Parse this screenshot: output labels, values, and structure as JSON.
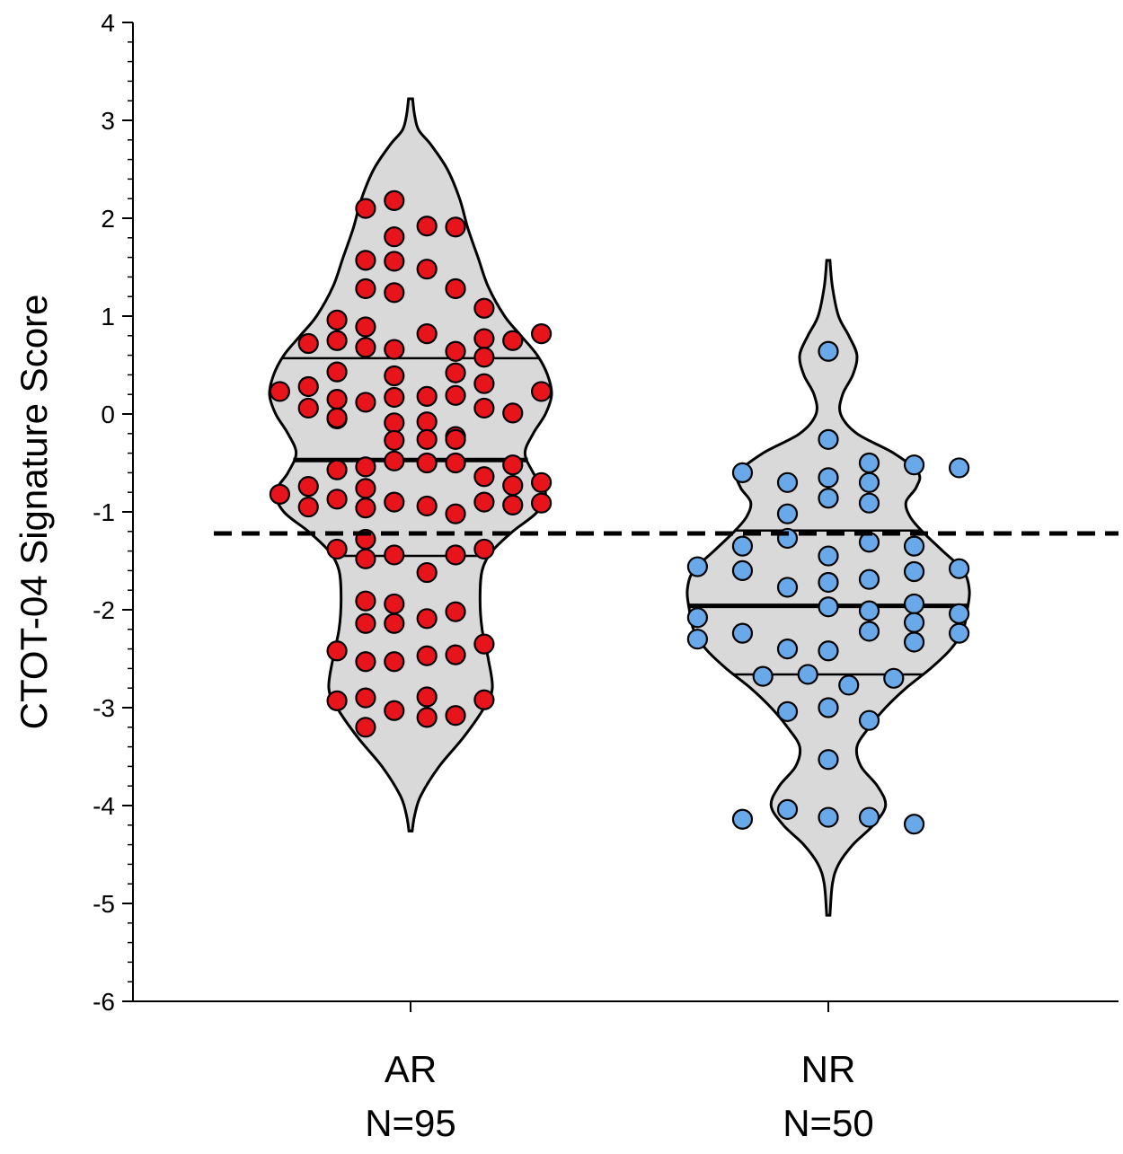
{
  "chart_data": {
    "type": "violin",
    "ylabel": "CTOT-04 Signature Score",
    "ylim": [
      -6,
      4
    ],
    "yticks": [
      4,
      3,
      2,
      1,
      0,
      -1,
      -2,
      -3,
      -4,
      -5,
      -6
    ],
    "ytick_labels": [
      "4",
      "3",
      "2",
      "1",
      "0",
      "-1",
      "-2",
      "-3",
      "-4",
      "-5",
      "-6"
    ],
    "threshold": -1.22,
    "groups": [
      {
        "name": "AR",
        "n_label": "N=95",
        "point_color": "#e8141b",
        "median": -0.47,
        "q1": -1.45,
        "q3": 0.57,
        "points": [
          {
            "x": -0.11,
            "y": 2.1
          },
          {
            "x": -0.04,
            "y": 2.18
          },
          {
            "x": 0.04,
            "y": 1.92
          },
          {
            "x": 0.11,
            "y": 1.91
          },
          {
            "x": -0.04,
            "y": 1.81
          },
          {
            "x": -0.11,
            "y": 1.57
          },
          {
            "x": -0.04,
            "y": 1.56
          },
          {
            "x": 0.04,
            "y": 1.48
          },
          {
            "x": -0.11,
            "y": 1.28
          },
          {
            "x": -0.04,
            "y": 1.24
          },
          {
            "x": 0.11,
            "y": 1.28
          },
          {
            "x": 0.18,
            "y": 1.08
          },
          {
            "x": -0.18,
            "y": 0.96
          },
          {
            "x": -0.11,
            "y": 0.89
          },
          {
            "x": 0.04,
            "y": 0.82
          },
          {
            "x": 0.18,
            "y": 0.77
          },
          {
            "x": 0.25,
            "y": 0.75
          },
          {
            "x": 0.32,
            "y": 0.82
          },
          {
            "x": -0.25,
            "y": 0.72
          },
          {
            "x": -0.18,
            "y": 0.75
          },
          {
            "x": -0.11,
            "y": 0.68
          },
          {
            "x": -0.04,
            "y": 0.66
          },
          {
            "x": 0.11,
            "y": 0.64
          },
          {
            "x": 0.18,
            "y": 0.58
          },
          {
            "x": -0.18,
            "y": 0.43
          },
          {
            "x": -0.04,
            "y": 0.39
          },
          {
            "x": 0.11,
            "y": 0.42
          },
          {
            "x": -0.32,
            "y": 0.23
          },
          {
            "x": -0.25,
            "y": 0.28
          },
          {
            "x": 0.18,
            "y": 0.31
          },
          {
            "x": 0.32,
            "y": 0.23
          },
          {
            "x": -0.18,
            "y": 0.15
          },
          {
            "x": -0.11,
            "y": 0.12
          },
          {
            "x": -0.04,
            "y": 0.17
          },
          {
            "x": 0.04,
            "y": 0.18
          },
          {
            "x": 0.11,
            "y": 0.19
          },
          {
            "x": -0.25,
            "y": 0.06
          },
          {
            "x": 0.18,
            "y": 0.06
          },
          {
            "x": 0.25,
            "y": 0.01
          },
          {
            "x": -0.18,
            "y": -0.05
          },
          {
            "x": -0.04,
            "y": -0.09
          },
          {
            "x": 0.04,
            "y": -0.08
          },
          {
            "x": -0.04,
            "y": -0.27
          },
          {
            "x": 0.04,
            "y": -0.26
          },
          {
            "x": 0.11,
            "y": -0.23
          },
          {
            "x": -0.04,
            "y": -0.48
          },
          {
            "x": 0.04,
            "y": -0.5
          },
          {
            "x": 0.11,
            "y": -0.5
          },
          {
            "x": -0.11,
            "y": -0.54
          },
          {
            "x": -0.18,
            "y": -0.57
          },
          {
            "x": 0.18,
            "y": -0.64
          },
          {
            "x": 0.25,
            "y": -0.52
          },
          {
            "x": 0.25,
            "y": -0.73
          },
          {
            "x": 0.32,
            "y": -0.7
          },
          {
            "x": -0.11,
            "y": -0.76
          },
          {
            "x": -0.32,
            "y": -0.82
          },
          {
            "x": -0.18,
            "y": -0.87
          },
          {
            "x": -0.04,
            "y": -0.9
          },
          {
            "x": 0.04,
            "y": -0.94
          },
          {
            "x": 0.18,
            "y": -0.9
          },
          {
            "x": 0.25,
            "y": -0.93
          },
          {
            "x": 0.32,
            "y": -0.91
          },
          {
            "x": -0.25,
            "y": -0.95
          },
          {
            "x": -0.11,
            "y": -0.96
          },
          {
            "x": 0.11,
            "y": -1.02
          },
          {
            "x": -0.11,
            "y": -1.28
          },
          {
            "x": -0.18,
            "y": -1.38
          },
          {
            "x": -0.04,
            "y": -1.44
          },
          {
            "x": 0.11,
            "y": -1.44
          },
          {
            "x": 0.18,
            "y": -1.38
          },
          {
            "x": -0.11,
            "y": -1.48
          },
          {
            "x": 0.04,
            "y": -1.62
          },
          {
            "x": -0.11,
            "y": -1.91
          },
          {
            "x": -0.04,
            "y": -1.94
          },
          {
            "x": -0.11,
            "y": -2.14
          },
          {
            "x": -0.04,
            "y": -2.14
          },
          {
            "x": 0.04,
            "y": -2.09
          },
          {
            "x": 0.11,
            "y": -2.02
          },
          {
            "x": -0.18,
            "y": -2.42
          },
          {
            "x": -0.11,
            "y": -2.53
          },
          {
            "x": -0.04,
            "y": -2.53
          },
          {
            "x": 0.04,
            "y": -2.47
          },
          {
            "x": 0.11,
            "y": -2.46
          },
          {
            "x": 0.18,
            "y": -2.35
          },
          {
            "x": -0.18,
            "y": -2.93
          },
          {
            "x": -0.11,
            "y": -2.9
          },
          {
            "x": 0.04,
            "y": -2.89
          },
          {
            "x": 0.18,
            "y": -2.92
          },
          {
            "x": -0.04,
            "y": -3.03
          },
          {
            "x": 0.04,
            "y": -3.1
          },
          {
            "x": 0.11,
            "y": -3.08
          },
          {
            "x": -0.11,
            "y": -3.2
          },
          {
            "x": -0.18,
            "y": -0.04
          },
          {
            "x": 0.11,
            "y": -0.26
          },
          {
            "x": -0.25,
            "y": -0.74
          }
        ],
        "violin_profile": [
          [
            3.22,
            0.005
          ],
          [
            3.05,
            0.01
          ],
          [
            2.9,
            0.02
          ],
          [
            2.75,
            0.05
          ],
          [
            2.5,
            0.09
          ],
          [
            2.2,
            0.12
          ],
          [
            1.9,
            0.14
          ],
          [
            1.6,
            0.165
          ],
          [
            1.3,
            0.19
          ],
          [
            1.0,
            0.23
          ],
          [
            0.8,
            0.27
          ],
          [
            0.6,
            0.31
          ],
          [
            0.4,
            0.335
          ],
          [
            0.2,
            0.345
          ],
          [
            0.0,
            0.33
          ],
          [
            -0.2,
            0.3
          ],
          [
            -0.4,
            0.28
          ],
          [
            -0.6,
            0.3
          ],
          [
            -0.8,
            0.33
          ],
          [
            -1.0,
            0.31
          ],
          [
            -1.2,
            0.25
          ],
          [
            -1.4,
            0.2
          ],
          [
            -1.6,
            0.175
          ],
          [
            -1.9,
            0.17
          ],
          [
            -2.2,
            0.175
          ],
          [
            -2.5,
            0.19
          ],
          [
            -2.8,
            0.2
          ],
          [
            -3.0,
            0.18
          ],
          [
            -3.3,
            0.13
          ],
          [
            -3.6,
            0.07
          ],
          [
            -3.9,
            0.025
          ],
          [
            -4.1,
            0.01
          ],
          [
            -4.26,
            0.004
          ]
        ]
      },
      {
        "name": "NR",
        "n_label": "N=50",
        "point_color": "#6aa9e9",
        "median": -1.96,
        "q1": -2.66,
        "q3": -1.19,
        "points": [
          {
            "x": 0.0,
            "y": 0.64
          },
          {
            "x": 0.0,
            "y": -0.26
          },
          {
            "x": -0.21,
            "y": -0.6
          },
          {
            "x": -0.1,
            "y": -0.7
          },
          {
            "x": 0.0,
            "y": -0.65
          },
          {
            "x": 0.1,
            "y": -0.5
          },
          {
            "x": 0.21,
            "y": -0.52
          },
          {
            "x": 0.32,
            "y": -0.55
          },
          {
            "x": 0.1,
            "y": -0.7
          },
          {
            "x": 0.0,
            "y": -0.86
          },
          {
            "x": 0.1,
            "y": -0.91
          },
          {
            "x": -0.1,
            "y": -1.02
          },
          {
            "x": -0.1,
            "y": -1.27
          },
          {
            "x": -0.21,
            "y": -1.35
          },
          {
            "x": 0.1,
            "y": -1.31
          },
          {
            "x": 0.21,
            "y": -1.35
          },
          {
            "x": 0.0,
            "y": -1.45
          },
          {
            "x": -0.32,
            "y": -1.56
          },
          {
            "x": -0.21,
            "y": -1.6
          },
          {
            "x": 0.32,
            "y": -1.58
          },
          {
            "x": 0.0,
            "y": -1.72
          },
          {
            "x": 0.1,
            "y": -1.69
          },
          {
            "x": 0.21,
            "y": -1.61
          },
          {
            "x": -0.1,
            "y": -1.77
          },
          {
            "x": 0.0,
            "y": -1.97
          },
          {
            "x": 0.1,
            "y": -2.01
          },
          {
            "x": 0.21,
            "y": -1.94
          },
          {
            "x": -0.32,
            "y": -2.08
          },
          {
            "x": 0.21,
            "y": -2.13
          },
          {
            "x": 0.32,
            "y": -2.04
          },
          {
            "x": -0.21,
            "y": -2.24
          },
          {
            "x": 0.1,
            "y": -2.22
          },
          {
            "x": 0.32,
            "y": -2.24
          },
          {
            "x": -0.32,
            "y": -2.3
          },
          {
            "x": 0.21,
            "y": -2.33
          },
          {
            "x": -0.1,
            "y": -2.4
          },
          {
            "x": 0.0,
            "y": -2.42
          },
          {
            "x": -0.16,
            "y": -2.68
          },
          {
            "x": -0.05,
            "y": -2.66
          },
          {
            "x": 0.05,
            "y": -2.77
          },
          {
            "x": 0.16,
            "y": -2.7
          },
          {
            "x": -0.1,
            "y": -3.04
          },
          {
            "x": 0.0,
            "y": -3.0
          },
          {
            "x": 0.1,
            "y": -3.13
          },
          {
            "x": 0.0,
            "y": -3.53
          },
          {
            "x": -0.21,
            "y": -4.14
          },
          {
            "x": -0.1,
            "y": -4.04
          },
          {
            "x": 0.0,
            "y": -4.12
          },
          {
            "x": 0.1,
            "y": -4.12
          },
          {
            "x": 0.21,
            "y": -4.19
          }
        ],
        "violin_profile": [
          [
            1.57,
            0.004
          ],
          [
            1.3,
            0.01
          ],
          [
            1.0,
            0.025
          ],
          [
            0.8,
            0.05
          ],
          [
            0.6,
            0.07
          ],
          [
            0.4,
            0.06
          ],
          [
            0.2,
            0.035
          ],
          [
            0.0,
            0.03
          ],
          [
            -0.2,
            0.07
          ],
          [
            -0.4,
            0.16
          ],
          [
            -0.6,
            0.22
          ],
          [
            -0.75,
            0.215
          ],
          [
            -0.9,
            0.19
          ],
          [
            -1.05,
            0.2
          ],
          [
            -1.2,
            0.23
          ],
          [
            -1.4,
            0.28
          ],
          [
            -1.6,
            0.33
          ],
          [
            -1.8,
            0.345
          ],
          [
            -2.0,
            0.34
          ],
          [
            -2.2,
            0.33
          ],
          [
            -2.4,
            0.3
          ],
          [
            -2.6,
            0.25
          ],
          [
            -2.8,
            0.19
          ],
          [
            -3.0,
            0.14
          ],
          [
            -3.2,
            0.1
          ],
          [
            -3.4,
            0.07
          ],
          [
            -3.6,
            0.08
          ],
          [
            -3.8,
            0.12
          ],
          [
            -4.0,
            0.14
          ],
          [
            -4.2,
            0.11
          ],
          [
            -4.4,
            0.06
          ],
          [
            -4.6,
            0.025
          ],
          [
            -4.8,
            0.01
          ],
          [
            -5.12,
            0.004
          ]
        ]
      }
    ]
  }
}
